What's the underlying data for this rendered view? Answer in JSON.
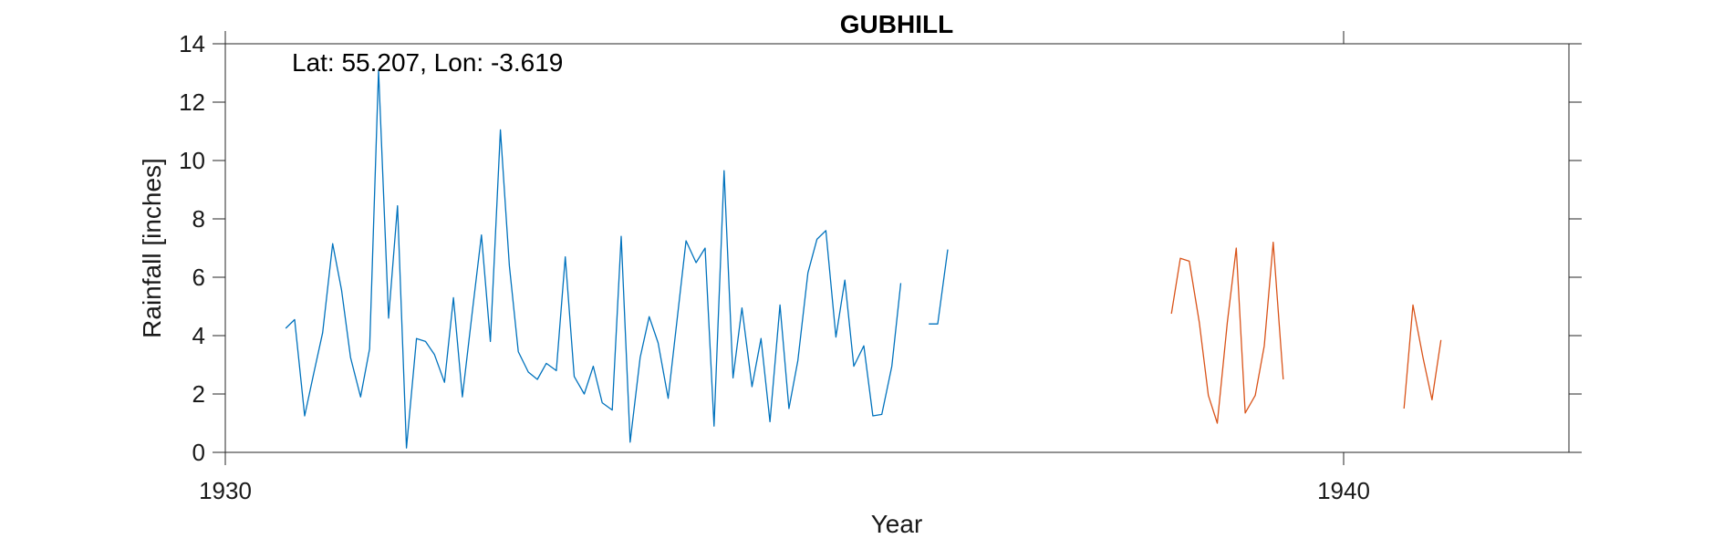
{
  "chart_data": {
    "type": "line",
    "title": "GUBHILL",
    "xlabel": "Year",
    "ylabel": "Rainfall [inches]",
    "xlim": [
      1930,
      1942
    ],
    "ylim": [
      0,
      14
    ],
    "xticks": [
      1930,
      1940
    ],
    "yticks": [
      0,
      2,
      4,
      6,
      8,
      10,
      12,
      14
    ],
    "annotation": "Lat: 55.207, Lon: -3.619",
    "grid": false,
    "box": true,
    "series": [
      {
        "color": "#0072BD",
        "segments": [
          [
            [
              1930.54,
              4.25
            ],
            [
              1930.62,
              4.55
            ],
            [
              1930.71,
              1.25
            ],
            [
              1930.79,
              2.7
            ],
            [
              1930.87,
              4.1
            ],
            [
              1930.96,
              7.15
            ],
            [
              1931.04,
              5.55
            ],
            [
              1931.12,
              3.25
            ],
            [
              1931.21,
              1.9
            ],
            [
              1931.29,
              3.55
            ],
            [
              1931.37,
              13.1
            ],
            [
              1931.46,
              4.6
            ],
            [
              1931.54,
              8.45
            ],
            [
              1931.62,
              0.15
            ],
            [
              1931.71,
              3.9
            ],
            [
              1931.79,
              3.8
            ],
            [
              1931.87,
              3.35
            ],
            [
              1931.96,
              2.4
            ],
            [
              1932.04,
              5.3
            ],
            [
              1932.12,
              1.9
            ],
            [
              1932.21,
              4.85
            ],
            [
              1932.29,
              7.45
            ],
            [
              1932.37,
              3.8
            ],
            [
              1932.46,
              11.05
            ],
            [
              1932.54,
              6.4
            ],
            [
              1932.62,
              3.45
            ],
            [
              1932.71,
              2.75
            ],
            [
              1932.79,
              2.5
            ],
            [
              1932.87,
              3.05
            ],
            [
              1932.96,
              2.8
            ],
            [
              1933.04,
              6.7
            ],
            [
              1933.12,
              2.6
            ],
            [
              1933.21,
              2.0
            ],
            [
              1933.29,
              2.95
            ],
            [
              1933.37,
              1.7
            ],
            [
              1933.46,
              1.45
            ],
            [
              1933.54,
              7.4
            ],
            [
              1933.62,
              0.35
            ],
            [
              1933.71,
              3.25
            ],
            [
              1933.79,
              4.65
            ],
            [
              1933.87,
              3.75
            ],
            [
              1933.96,
              1.85
            ],
            [
              1934.04,
              4.55
            ],
            [
              1934.12,
              7.25
            ],
            [
              1934.21,
              6.5
            ],
            [
              1934.29,
              7.0
            ],
            [
              1934.37,
              0.9
            ],
            [
              1934.46,
              9.65
            ],
            [
              1934.54,
              2.55
            ],
            [
              1934.62,
              4.95
            ],
            [
              1934.71,
              2.25
            ],
            [
              1934.79,
              3.9
            ],
            [
              1934.87,
              1.05
            ],
            [
              1934.96,
              5.05
            ],
            [
              1935.04,
              1.5
            ],
            [
              1935.12,
              3.15
            ],
            [
              1935.21,
              6.15
            ],
            [
              1935.29,
              7.3
            ],
            [
              1935.37,
              7.6
            ],
            [
              1935.46,
              3.95
            ],
            [
              1935.54,
              5.9
            ],
            [
              1935.62,
              2.95
            ],
            [
              1935.71,
              3.65
            ],
            [
              1935.79,
              1.25
            ],
            [
              1935.87,
              1.3
            ],
            [
              1935.96,
              2.95
            ],
            [
              1936.04,
              5.8
            ]
          ],
          [
            [
              1936.29,
              4.4
            ],
            [
              1936.37,
              4.4
            ],
            [
              1936.46,
              6.95
            ]
          ]
        ]
      },
      {
        "color": "#D95319",
        "segments": [
          [
            [
              1938.46,
              4.75
            ],
            [
              1938.54,
              6.65
            ],
            [
              1938.62,
              6.55
            ],
            [
              1938.71,
              4.45
            ],
            [
              1938.79,
              1.95
            ],
            [
              1938.87,
              1.0
            ],
            [
              1938.96,
              4.45
            ],
            [
              1939.04,
              7.0
            ],
            [
              1939.12,
              1.35
            ],
            [
              1939.21,
              1.95
            ],
            [
              1939.29,
              3.65
            ],
            [
              1939.37,
              7.2
            ],
            [
              1939.46,
              2.5
            ]
          ],
          [
            [
              1940.54,
              1.5
            ],
            [
              1940.62,
              5.05
            ],
            [
              1940.71,
              3.25
            ],
            [
              1940.79,
              1.8
            ],
            [
              1940.87,
              3.85
            ]
          ]
        ]
      }
    ]
  }
}
